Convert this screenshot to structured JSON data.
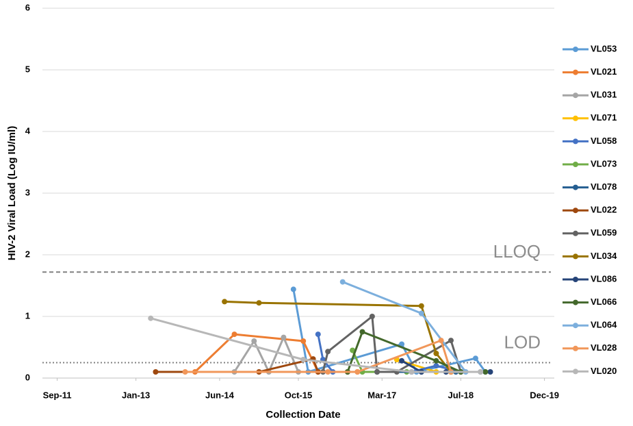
{
  "chart_data": {
    "type": "line",
    "xlabel": "Collection Date",
    "ylabel": "HIV-2 Viral Load (Log IU/ml)",
    "xlim": [
      "2011-06",
      "2020-02"
    ],
    "xticks": [
      {
        "value": "2011-09",
        "label": "Sep-11"
      },
      {
        "value": "2013-01",
        "label": "Jan-13"
      },
      {
        "value": "2014-06",
        "label": "Jun-14"
      },
      {
        "value": "2015-10",
        "label": "Oct-15"
      },
      {
        "value": "2017-03",
        "label": "Mar-17"
      },
      {
        "value": "2018-07",
        "label": "Jul-18"
      },
      {
        "value": "2019-12",
        "label": "Dec-19"
      }
    ],
    "ylim": [
      0,
      6
    ],
    "yticks": [
      0,
      1,
      2,
      3,
      4,
      5,
      6
    ],
    "grid": true,
    "legend": "right",
    "reference_lines": [
      {
        "label": "LLOQ",
        "value": 1.72,
        "color": "#808080",
        "dash": "6,4"
      },
      {
        "label": "LOD",
        "value": 0.25,
        "color": "#808080",
        "dash": "2,3"
      }
    ],
    "series": [
      {
        "name": "VL053",
        "color": "#5b9bd5",
        "x": [
          "2015-09",
          "2015-12",
          "2017-07",
          "2017-10",
          "2018-10",
          "2018-12"
        ],
        "values": [
          1.44,
          0.1,
          0.55,
          0.1,
          0.32,
          0.1
        ]
      },
      {
        "name": "VL021",
        "color": "#ed7d31",
        "x": [
          "2014-01",
          "2014-09",
          "2015-11",
          "2016-02",
          "2016-10"
        ],
        "values": [
          0.1,
          0.71,
          0.6,
          0.1,
          0.1
        ]
      },
      {
        "name": "VL031",
        "color": "#a5a5a5",
        "x": [
          "2014-09",
          "2015-01",
          "2015-04",
          "2015-07",
          "2015-10"
        ],
        "values": [
          0.1,
          0.6,
          0.1,
          0.66,
          0.1
        ]
      },
      {
        "name": "VL071",
        "color": "#ffc000",
        "x": [
          "2017-06",
          "2018-02",
          "2018-05"
        ],
        "values": [
          0.3,
          0.1,
          0.1
        ]
      },
      {
        "name": "VL058",
        "color": "#4472c4",
        "x": [
          "2016-02",
          "2016-03",
          "2016-05",
          "2017-09",
          "2018-02",
          "2018-07"
        ],
        "values": [
          0.71,
          0.3,
          0.1,
          0.1,
          0.2,
          0.1
        ]
      },
      {
        "name": "VL073",
        "color": "#70ad47",
        "x": [
          "2016-09",
          "2016-11",
          "2017-08",
          "2018-05"
        ],
        "values": [
          0.45,
          0.1,
          0.1,
          0.1
        ]
      },
      {
        "name": "VL078",
        "color": "#255e91",
        "x": [
          "2017-02",
          "2017-11",
          "2018-06"
        ],
        "values": [
          0.1,
          0.1,
          0.1
        ]
      },
      {
        "name": "VL022",
        "color": "#9e480e",
        "x": [
          "2013-05",
          "2015-02",
          "2016-01",
          "2016-02",
          "2016-08"
        ],
        "values": [
          0.1,
          0.1,
          0.31,
          0.1,
          0.1
        ]
      },
      {
        "name": "VL059",
        "color": "#636363",
        "x": [
          "2016-03",
          "2016-04",
          "2017-01",
          "2017-02",
          "2017-06",
          "2018-05",
          "2018-07"
        ],
        "values": [
          0.1,
          0.43,
          1.0,
          0.1,
          0.1,
          0.61,
          0.1
        ]
      },
      {
        "name": "VL034",
        "color": "#997300",
        "x": [
          "2014-07",
          "2015-02",
          "2017-11",
          "2018-02",
          "2018-05"
        ],
        "values": [
          1.24,
          1.22,
          1.17,
          0.4,
          0.1
        ]
      },
      {
        "name": "VL086",
        "color": "#264478",
        "x": [
          "2017-07",
          "2017-11",
          "2018-04",
          "2019-01"
        ],
        "values": [
          0.28,
          0.1,
          0.1,
          0.1
        ]
      },
      {
        "name": "VL066",
        "color": "#43682b",
        "x": [
          "2016-08",
          "2016-11",
          "2018-02",
          "2018-07",
          "2018-12"
        ],
        "values": [
          0.1,
          0.75,
          0.28,
          0.1,
          0.1
        ]
      },
      {
        "name": "VL064",
        "color": "#7cafdd",
        "x": [
          "2016-07",
          "2017-11",
          "2018-08",
          "2018-11"
        ],
        "values": [
          1.56,
          1.05,
          0.1,
          0.1
        ]
      },
      {
        "name": "VL028",
        "color": "#f1975a",
        "x": [
          "2013-11",
          "2016-04",
          "2016-10",
          "2018-03",
          "2018-05"
        ],
        "values": [
          0.1,
          0.1,
          0.1,
          0.61,
          0.1
        ]
      },
      {
        "name": "VL020",
        "color": "#b7b7b7",
        "x": [
          "2013-04",
          "2015-11",
          "2017-09",
          "2018-11"
        ],
        "values": [
          0.97,
          0.3,
          0.1,
          0.1
        ]
      }
    ]
  }
}
